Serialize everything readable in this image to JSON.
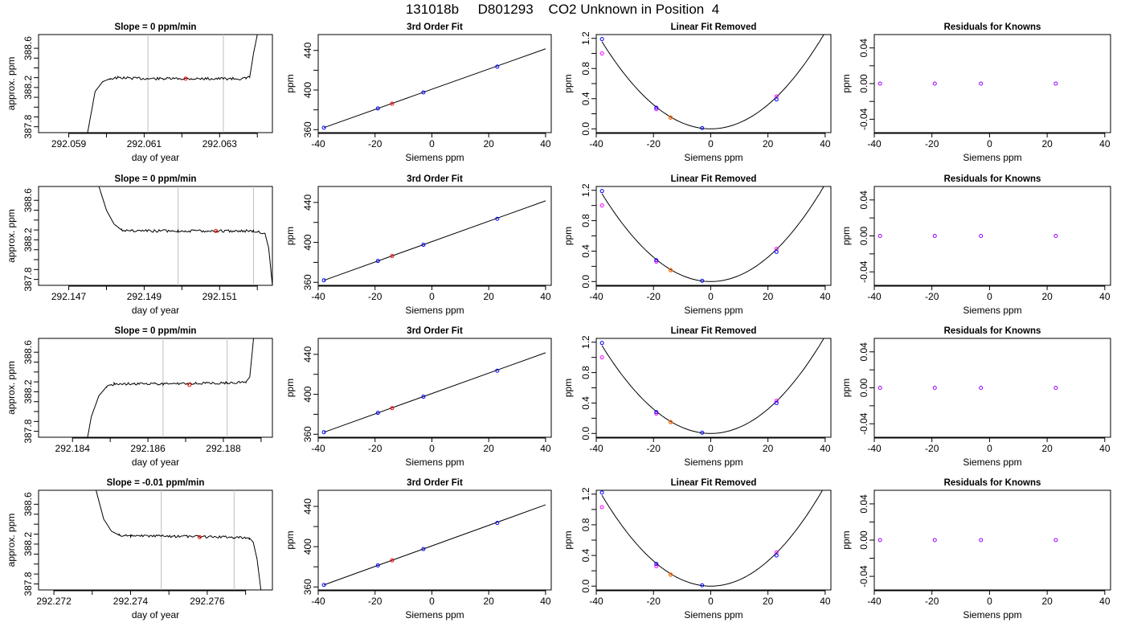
{
  "title": "131018b     D801293    CO2 Unknown in Position  4",
  "colors": {
    "line": "#000000",
    "vline": "#bebebe",
    "known_fit": "#0000ff",
    "known_meas": "#ff00ff",
    "unknown_fit": "#ff0000",
    "unknown_lin": "#ff6600",
    "resid": "#9900ff"
  },
  "chart_data": [
    {
      "type": "line",
      "panel": "time",
      "title": "Slope =  0  ppm/min",
      "xlabel": "day of year",
      "ylabel": "approx. ppm",
      "xlim": [
        292.0582,
        292.0644
      ],
      "ylim": [
        387.74,
        388.74
      ],
      "xticks": [
        "292.059",
        "292.061",
        "292.063"
      ],
      "xtick_values": [
        292.059,
        292.061,
        292.063
      ],
      "yticks": [
        "387.8",
        "388.2",
        "388.6"
      ],
      "ytick_values": [
        387.8,
        388.2,
        388.6
      ],
      "vlines": [
        292.0611,
        292.0631
      ],
      "trace_points": [
        [
          292.0595,
          387.74
        ],
        [
          292.0596,
          387.95
        ],
        [
          292.0597,
          388.16
        ],
        [
          292.0599,
          388.26
        ],
        [
          292.0601,
          388.29
        ],
        [
          292.0603,
          388.3
        ],
        [
          292.0611,
          388.29
        ],
        [
          292.0631,
          388.29
        ],
        [
          292.0637,
          388.29
        ],
        [
          292.0638,
          388.31
        ],
        [
          292.0639,
          388.55
        ],
        [
          292.064,
          388.74
        ]
      ],
      "marker": {
        "x": 292.0621,
        "y": 388.29
      }
    },
    {
      "type": "scatter",
      "panel": "fit",
      "title": "3rd Order Fit",
      "xlabel": "Siemens ppm",
      "ylabel": "ppm",
      "xlim": [
        -40,
        42
      ],
      "ylim": [
        357,
        456
      ],
      "xticks": [
        "-40",
        "-20",
        "0",
        "20",
        "40"
      ],
      "yticks": [
        "360",
        "400",
        "440"
      ],
      "knowns": [
        [
          -38,
          362
        ],
        [
          -19,
          381.4
        ],
        [
          -3,
          397.6
        ],
        [
          23,
          423.6
        ]
      ],
      "unknown": [
        -14,
        386.2
      ],
      "fit_line": [
        [
          -38,
          362
        ],
        [
          40,
          441.6
        ]
      ]
    },
    {
      "type": "scatter",
      "panel": "linear",
      "title": "Linear Fit Removed",
      "xlabel": "Siemens ppm",
      "ylabel": "ppm",
      "xlim": [
        -40,
        42
      ],
      "ylim": [
        -0.05,
        1.25
      ],
      "xticks": [
        "-40",
        "-20",
        "0",
        "20",
        "40"
      ],
      "yticks": [
        "0.0",
        "0.4",
        "0.8",
        "1.2"
      ],
      "knowns_fit": [
        [
          -38,
          1.19
        ],
        [
          -19,
          0.28
        ],
        [
          -3,
          0.01
        ],
        [
          23,
          0.39
        ]
      ],
      "knowns_meas": [
        [
          -38,
          1.0
        ],
        [
          -19,
          0.26
        ],
        [
          23,
          0.43
        ]
      ],
      "unknown": [
        -14,
        0.15
      ],
      "curve_a": 0.0008
    },
    {
      "type": "scatter",
      "panel": "resid",
      "title": "Residuals for Knowns",
      "xlabel": "Siemens ppm",
      "ylabel": "ppm",
      "xlim": [
        -40,
        42
      ],
      "ylim": [
        -0.055,
        0.055
      ],
      "xticks": [
        "-40",
        "-20",
        "0",
        "20",
        "40"
      ],
      "yticks": [
        "-0.04",
        "0.00",
        "0.04"
      ],
      "points": [
        [
          -38,
          0
        ],
        [
          -19,
          0
        ],
        [
          -3,
          0
        ],
        [
          23,
          0
        ]
      ]
    },
    {
      "type": "line",
      "panel": "time",
      "title": "Slope =  0  ppm/min",
      "xlabel": "day of year",
      "ylabel": "approx. ppm",
      "xlim": [
        292.1462,
        292.1524
      ],
      "ylim": [
        387.74,
        388.74
      ],
      "xticks": [
        "292.147",
        "292.149",
        "292.151"
      ],
      "xtick_values": [
        292.147,
        292.149,
        292.151
      ],
      "yticks": [
        "387.8",
        "388.2",
        "388.6"
      ],
      "ytick_values": [
        387.8,
        388.2,
        388.6
      ],
      "vlines": [
        292.1499,
        292.1519
      ],
      "trace_points": [
        [
          292.1478,
          388.74
        ],
        [
          292.148,
          388.5
        ],
        [
          292.1482,
          388.36
        ],
        [
          292.1484,
          388.3
        ],
        [
          292.1487,
          388.29
        ],
        [
          292.1499,
          388.29
        ],
        [
          292.1519,
          388.29
        ],
        [
          292.1522,
          388.27
        ],
        [
          292.1523,
          388.12
        ],
        [
          292.1524,
          387.74
        ]
      ],
      "marker": {
        "x": 292.1509,
        "y": 388.29
      }
    },
    {
      "type": "scatter",
      "panel": "fit",
      "title": "3rd Order Fit",
      "xlabel": "Siemens ppm",
      "ylabel": "ppm",
      "xlim": [
        -40,
        42
      ],
      "ylim": [
        357,
        456
      ],
      "xticks": [
        "-40",
        "-20",
        "0",
        "20",
        "40"
      ],
      "yticks": [
        "360",
        "400",
        "440"
      ],
      "knowns": [
        [
          -38,
          362
        ],
        [
          -19,
          381.4
        ],
        [
          -3,
          397.6
        ],
        [
          23,
          423.6
        ]
      ],
      "unknown": [
        -14,
        386.4
      ],
      "fit_line": [
        [
          -38,
          362
        ],
        [
          40,
          441.6
        ]
      ]
    },
    {
      "type": "scatter",
      "panel": "linear",
      "title": "Linear Fit Removed",
      "xlabel": "Siemens ppm",
      "ylabel": "ppm",
      "xlim": [
        -40,
        42
      ],
      "ylim": [
        -0.05,
        1.25
      ],
      "xticks": [
        "-40",
        "-20",
        "0",
        "20",
        "40"
      ],
      "yticks": [
        "0.0",
        "0.4",
        "0.8",
        "1.2"
      ],
      "knowns_fit": [
        [
          -38,
          1.19
        ],
        [
          -19,
          0.28
        ],
        [
          -3,
          0.01
        ],
        [
          23,
          0.39
        ]
      ],
      "knowns_meas": [
        [
          -38,
          1.0
        ],
        [
          -19,
          0.26
        ],
        [
          23,
          0.43
        ]
      ],
      "unknown": [
        -14,
        0.15
      ],
      "curve_a": 0.0008
    },
    {
      "type": "scatter",
      "panel": "resid",
      "title": "Residuals for Knowns",
      "xlabel": "Siemens ppm",
      "ylabel": "ppm",
      "xlim": [
        -40,
        42
      ],
      "ylim": [
        -0.055,
        0.055
      ],
      "xticks": [
        "-40",
        "-20",
        "0",
        "20",
        "40"
      ],
      "yticks": [
        "-0.04",
        "0.00",
        "0.04"
      ],
      "points": [
        [
          -38,
          0
        ],
        [
          -19,
          0
        ],
        [
          -3,
          0
        ],
        [
          23,
          0
        ]
      ]
    },
    {
      "type": "line",
      "panel": "time",
      "title": "Slope =  0  ppm/min",
      "xlabel": "day of year",
      "ylabel": "approx. ppm",
      "xlim": [
        292.1831,
        292.1893
      ],
      "ylim": [
        387.74,
        388.74
      ],
      "xticks": [
        "292.184",
        "292.186",
        "292.188"
      ],
      "xtick_values": [
        292.184,
        292.186,
        292.188
      ],
      "yticks": [
        "387.8",
        "388.2",
        "388.6"
      ],
      "ytick_values": [
        387.8,
        388.2,
        388.6
      ],
      "vlines": [
        292.1864,
        292.1881
      ],
      "trace_points": [
        [
          292.1844,
          387.74
        ],
        [
          292.1845,
          387.95
        ],
        [
          292.1847,
          388.16
        ],
        [
          292.1849,
          388.25
        ],
        [
          292.1851,
          388.28
        ],
        [
          292.1864,
          388.28
        ],
        [
          292.1881,
          388.29
        ],
        [
          292.1886,
          388.3
        ],
        [
          292.1887,
          388.35
        ],
        [
          292.1888,
          388.74
        ]
      ],
      "marker": {
        "x": 292.1871,
        "y": 388.27
      }
    },
    {
      "type": "scatter",
      "panel": "fit",
      "title": "3rd Order Fit",
      "xlabel": "Siemens ppm",
      "ylabel": "ppm",
      "xlim": [
        -40,
        42
      ],
      "ylim": [
        357,
        456
      ],
      "xticks": [
        "-40",
        "-20",
        "0",
        "20",
        "40"
      ],
      "yticks": [
        "360",
        "400",
        "440"
      ],
      "knowns": [
        [
          -38,
          362
        ],
        [
          -19,
          381.4
        ],
        [
          -3,
          397.6
        ],
        [
          23,
          423.6
        ]
      ],
      "unknown": [
        -14,
        386.2
      ],
      "fit_line": [
        [
          -38,
          362
        ],
        [
          40,
          441.6
        ]
      ]
    },
    {
      "type": "scatter",
      "panel": "linear",
      "title": "Linear Fit Removed",
      "xlabel": "Siemens ppm",
      "ylabel": "ppm",
      "xlim": [
        -40,
        42
      ],
      "ylim": [
        -0.05,
        1.25
      ],
      "xticks": [
        "-40",
        "-20",
        "0",
        "20",
        "40"
      ],
      "yticks": [
        "0.0",
        "0.4",
        "0.8",
        "1.2"
      ],
      "knowns_fit": [
        [
          -38,
          1.19
        ],
        [
          -19,
          0.28
        ],
        [
          -3,
          0.01
        ],
        [
          23,
          0.4
        ]
      ],
      "knowns_meas": [
        [
          -38,
          1.0
        ],
        [
          -19,
          0.26
        ],
        [
          23,
          0.43
        ]
      ],
      "unknown": [
        -14,
        0.15
      ],
      "curve_a": 0.0008
    },
    {
      "type": "scatter",
      "panel": "resid",
      "title": "Residuals for Knowns",
      "xlabel": "Siemens ppm",
      "ylabel": "ppm",
      "xlim": [
        -40,
        42
      ],
      "ylim": [
        -0.055,
        0.055
      ],
      "xticks": [
        "-40",
        "-20",
        "0",
        "20",
        "40"
      ],
      "yticks": [
        "-0.04",
        "0.00",
        "0.04"
      ],
      "points": [
        [
          -38,
          0
        ],
        [
          -19,
          0
        ],
        [
          -3,
          0
        ],
        [
          23,
          0
        ]
      ]
    },
    {
      "type": "line",
      "panel": "time",
      "title": "Slope =  -0.01  ppm/min",
      "xlabel": "day of year",
      "ylabel": "approx. ppm",
      "xlim": [
        292.2716,
        292.2777
      ],
      "ylim": [
        387.74,
        388.74
      ],
      "xticks": [
        "292.272",
        "292.274",
        "292.276"
      ],
      "xtick_values": [
        292.272,
        292.274,
        292.276
      ],
      "yticks": [
        "387.8",
        "388.2",
        "388.6"
      ],
      "ytick_values": [
        387.8,
        388.2,
        388.6
      ],
      "vlines": [
        292.2748,
        292.2767
      ],
      "trace_points": [
        [
          292.2731,
          388.74
        ],
        [
          292.2733,
          388.45
        ],
        [
          292.2735,
          388.33
        ],
        [
          292.2737,
          388.29
        ],
        [
          292.274,
          388.28
        ],
        [
          292.2748,
          388.28
        ],
        [
          292.2767,
          388.27
        ],
        [
          292.2771,
          388.26
        ],
        [
          292.2772,
          388.22
        ],
        [
          292.2773,
          388.05
        ],
        [
          292.2774,
          387.74
        ]
      ],
      "marker": {
        "x": 292.2758,
        "y": 388.27
      }
    },
    {
      "type": "scatter",
      "panel": "fit",
      "title": "3rd Order Fit",
      "xlabel": "Siemens ppm",
      "ylabel": "ppm",
      "xlim": [
        -40,
        42
      ],
      "ylim": [
        357,
        456
      ],
      "xticks": [
        "-40",
        "-20",
        "0",
        "20",
        "40"
      ],
      "yticks": [
        "360",
        "400",
        "440"
      ],
      "knowns": [
        [
          -38,
          362
        ],
        [
          -19,
          381.4
        ],
        [
          -3,
          397.6
        ],
        [
          23,
          423.6
        ]
      ],
      "unknown": [
        -14,
        386.4
      ],
      "fit_line": [
        [
          -38,
          362
        ],
        [
          40,
          441.6
        ]
      ]
    },
    {
      "type": "scatter",
      "panel": "linear",
      "title": "Linear Fit Removed",
      "xlabel": "Siemens ppm",
      "ylabel": "ppm",
      "xlim": [
        -40,
        42
      ],
      "ylim": [
        -0.05,
        1.25
      ],
      "xticks": [
        "-40",
        "-20",
        "0",
        "20",
        "40"
      ],
      "yticks": [
        "0.0",
        "0.4",
        "0.8",
        "1.2"
      ],
      "knowns_fit": [
        [
          -38,
          1.22
        ],
        [
          -19,
          0.29
        ],
        [
          -3,
          0.01
        ],
        [
          23,
          0.4
        ]
      ],
      "knowns_meas": [
        [
          -38,
          1.03
        ],
        [
          -19,
          0.26
        ],
        [
          23,
          0.44
        ]
      ],
      "unknown": [
        -14,
        0.15
      ],
      "curve_a": 0.00082
    },
    {
      "type": "scatter",
      "panel": "resid",
      "title": "Residuals for Knowns",
      "xlabel": "Siemens ppm",
      "ylabel": "ppm",
      "xlim": [
        -40,
        42
      ],
      "ylim": [
        -0.055,
        0.055
      ],
      "xticks": [
        "-40",
        "-20",
        "0",
        "20",
        "40"
      ],
      "yticks": [
        "-0.04",
        "0.00",
        "0.04"
      ],
      "points": [
        [
          -38,
          0
        ],
        [
          -19,
          0
        ],
        [
          -3,
          0
        ],
        [
          23,
          0
        ]
      ]
    }
  ]
}
